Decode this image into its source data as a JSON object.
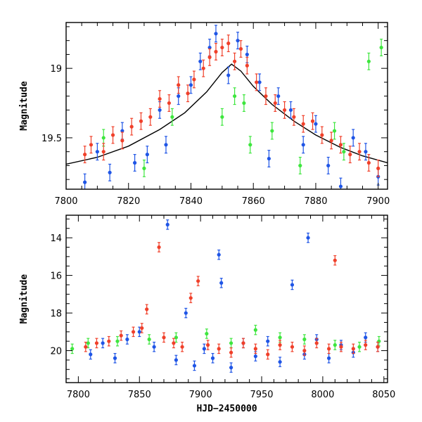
{
  "chart_data": [
    {
      "type": "scatter",
      "panel": "top",
      "xlabel": "",
      "ylabel": "Magnitude",
      "xlim": [
        7800,
        7903
      ],
      "ylim": [
        19.87,
        18.67
      ],
      "y_inverted": true,
      "xticks": [
        7800,
        7820,
        7840,
        7860,
        7880,
        7900
      ],
      "yticks": [
        19,
        19.5
      ],
      "ytick_labels": [
        "19",
        "19.5"
      ],
      "grid": false,
      "colors": {
        "blue": "#1f55e6",
        "green": "#3ee63e",
        "red": "#f0402a"
      },
      "model_curve": {
        "x": [
          7800,
          7810,
          7820,
          7830,
          7838,
          7845,
          7850,
          7853,
          7856,
          7860,
          7866,
          7873,
          7880,
          7888,
          7895,
          7903
        ],
        "y": [
          19.69,
          19.64,
          19.56,
          19.44,
          19.32,
          19.17,
          19.03,
          18.97,
          19.02,
          19.13,
          19.26,
          19.38,
          19.48,
          19.57,
          19.63,
          19.68
        ]
      },
      "series": [
        {
          "color": "blue",
          "x": [
            7806,
            7810,
            7814,
            7818,
            7822,
            7826,
            7830,
            7832,
            7836,
            7840,
            7843,
            7846,
            7848,
            7852,
            7855,
            7858,
            7862,
            7865,
            7868,
            7872,
            7876,
            7880,
            7884,
            7888,
            7892,
            7896,
            7900
          ],
          "y": [
            19.82,
            19.6,
            19.75,
            19.45,
            19.68,
            19.62,
            19.3,
            19.55,
            19.2,
            19.12,
            18.95,
            18.85,
            18.75,
            19.05,
            18.8,
            18.9,
            19.1,
            19.65,
            19.2,
            19.3,
            19.55,
            19.4,
            19.7,
            19.85,
            19.5,
            19.6,
            19.78
          ]
        },
        {
          "color": "green",
          "x": [
            7812,
            7825,
            7834,
            7850,
            7854,
            7857,
            7859,
            7866,
            7875,
            7886,
            7889,
            7897,
            7901
          ],
          "y": [
            19.5,
            19.72,
            19.35,
            19.35,
            19.2,
            19.25,
            19.55,
            19.45,
            19.7,
            19.45,
            19.6,
            18.95,
            18.85
          ]
        },
        {
          "color": "red",
          "x": [
            7806,
            7808,
            7812,
            7815,
            7818,
            7821,
            7824,
            7827,
            7830,
            7833,
            7836,
            7839,
            7841,
            7844,
            7846,
            7848,
            7850,
            7852,
            7854,
            7856,
            7858,
            7861,
            7864,
            7867,
            7870,
            7873,
            7876,
            7879,
            7882,
            7885,
            7888,
            7891,
            7894,
            7897,
            7900
          ],
          "y": [
            19.62,
            19.55,
            19.6,
            19.48,
            19.52,
            19.42,
            19.38,
            19.35,
            19.22,
            19.25,
            19.12,
            19.18,
            19.08,
            19.0,
            18.92,
            18.88,
            18.85,
            18.82,
            18.95,
            18.86,
            18.98,
            19.1,
            19.2,
            19.25,
            19.3,
            19.35,
            19.4,
            19.38,
            19.48,
            19.52,
            19.55,
            19.62,
            19.6,
            19.68,
            19.72
          ]
        }
      ]
    },
    {
      "type": "scatter",
      "panel": "bottom",
      "xlabel": "HJD−2450000",
      "ylabel": "Magnitude",
      "xlim": [
        7790,
        8053
      ],
      "ylim": [
        21.7,
        12.8
      ],
      "y_inverted": true,
      "xticks": [
        7800,
        7850,
        7900,
        7950,
        8000,
        8050
      ],
      "yticks": [
        14,
        16,
        18,
        20
      ],
      "ytick_labels": [
        "14",
        "16",
        "18",
        "20"
      ],
      "grid": false,
      "colors": {
        "blue": "#1f55e6",
        "green": "#3ee63e",
        "red": "#f0402a"
      },
      "series": [
        {
          "color": "blue",
          "x": [
            7810,
            7820,
            7830,
            7840,
            7850,
            7862,
            7873,
            7880,
            7888,
            7895,
            7903,
            7910,
            7915,
            7917,
            7925,
            7935,
            7945,
            7955,
            7965,
            7975,
            7985,
            7988,
            7995,
            8005,
            8015,
            8025,
            8035,
            8045
          ],
          "y": [
            20.2,
            19.6,
            20.4,
            19.4,
            19.0,
            19.8,
            13.3,
            20.5,
            18.0,
            20.8,
            19.9,
            20.4,
            14.9,
            16.4,
            20.9,
            19.6,
            20.3,
            19.5,
            20.6,
            16.5,
            20.2,
            14.0,
            19.4,
            20.4,
            19.7,
            20.1,
            19.3,
            19.8
          ]
        },
        {
          "color": "green",
          "x": [
            7795,
            7808,
            7832,
            7858,
            7880,
            7905,
            7925,
            7945,
            7965,
            7985,
            8010,
            8030,
            8046
          ],
          "y": [
            19.9,
            19.6,
            19.5,
            19.4,
            19.3,
            19.1,
            19.6,
            18.9,
            19.3,
            19.4,
            19.7,
            19.8,
            19.5
          ]
        },
        {
          "color": "red",
          "x": [
            7806,
            7815,
            7825,
            7835,
            7845,
            7852,
            7856,
            7866,
            7870,
            7878,
            7885,
            7892,
            7898,
            7906,
            7915,
            7925,
            7935,
            7945,
            7955,
            7965,
            7975,
            7985,
            7995,
            8005,
            8010,
            8015,
            8025,
            8035,
            8045
          ],
          "y": [
            19.8,
            19.6,
            19.5,
            19.2,
            19.0,
            18.8,
            17.8,
            14.5,
            19.3,
            19.6,
            19.8,
            17.2,
            16.3,
            19.7,
            19.9,
            20.1,
            19.6,
            19.9,
            20.2,
            19.7,
            19.8,
            20.0,
            19.6,
            19.9,
            15.2,
            19.8,
            19.9,
            19.7,
            19.8
          ]
        }
      ]
    }
  ]
}
